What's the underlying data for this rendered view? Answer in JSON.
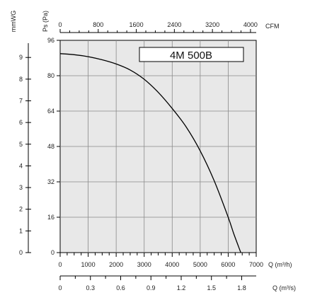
{
  "chart_data": {
    "type": "line",
    "title": "4M 500B",
    "grid": true,
    "colors": {
      "plot_bg": "#e8e8e8",
      "grid": "#8a8a8a",
      "curve": "#000000",
      "axis": "#000000"
    },
    "axes": {
      "bottom_q_m3h": {
        "label": "Q (m³/h)",
        "range": [
          0,
          7000
        ],
        "ticks": [
          "0",
          "1000",
          "2000",
          "3000",
          "4000",
          "5000",
          "6000",
          "7000"
        ]
      },
      "bottom_q_m3s": {
        "label": "Q (m³/s)",
        "range": [
          0,
          1.944
        ],
        "ticks": [
          "0",
          "0.3",
          "0.6",
          "0.9",
          "1.2",
          "1.5",
          "1.8"
        ]
      },
      "top_cfm": {
        "label": "CFM",
        "range": [
          0,
          4120
        ],
        "ticks": [
          "0",
          "800",
          "1600",
          "2400",
          "3200",
          "4000"
        ]
      },
      "left_pa": {
        "label": "Ps (Pa)",
        "range": [
          0,
          96
        ],
        "ticks": [
          "0",
          "16",
          "32",
          "48",
          "64",
          "80",
          "96"
        ]
      },
      "left_mmwg": {
        "label": "mmWG",
        "range": [
          0,
          9.79
        ],
        "ticks": [
          "0",
          "1",
          "2",
          "3",
          "4",
          "5",
          "6",
          "7",
          "8",
          "9"
        ]
      }
    },
    "series": [
      {
        "x": [
          0,
          500,
          1000,
          1500,
          2000,
          2500,
          3000,
          3500,
          4000,
          4500,
          5000,
          5500,
          6000,
          6200,
          6450
        ],
        "y": [
          90,
          89.5,
          88.6,
          87.2,
          85.3,
          82.6,
          78.4,
          72.5,
          65.2,
          56.8,
          46,
          32.5,
          16,
          8.5,
          0
        ]
      }
    ]
  }
}
